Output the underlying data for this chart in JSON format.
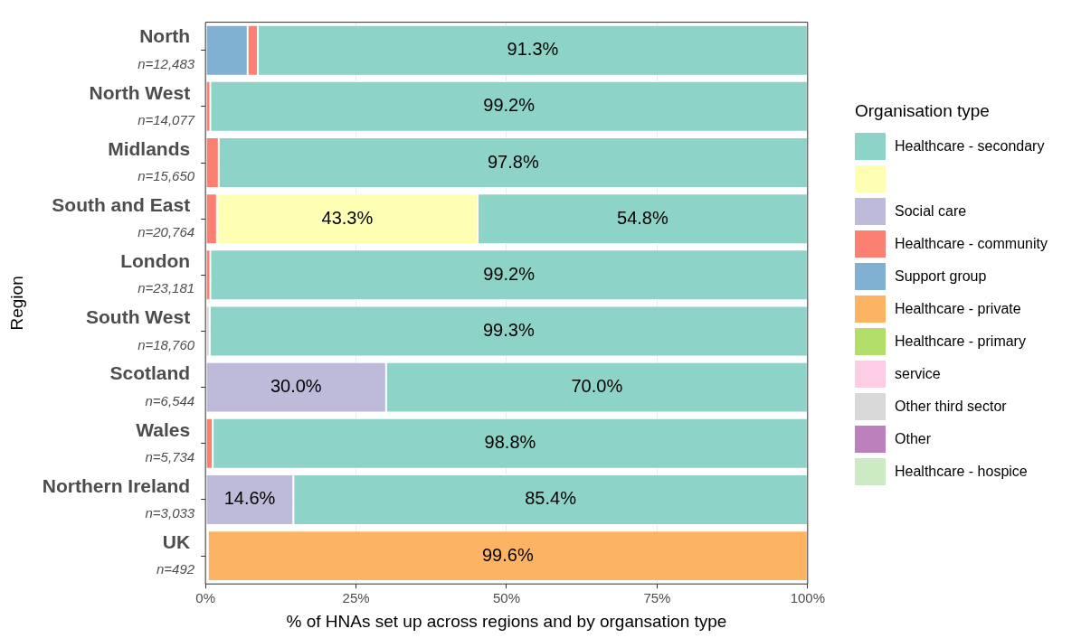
{
  "chart_data": {
    "type": "bar",
    "orientation": "horizontal",
    "stacked": true,
    "xlabel": "% of HNAs set up across regions and by organsation type",
    "ylabel": "Region",
    "legend_title": "Organisation type",
    "legend": "right",
    "grid": true,
    "categories": [
      "North",
      "North West",
      "Midlands",
      "South and East",
      "London",
      "South West",
      "Scotland",
      "Wales",
      "Northern Ireland",
      "UK"
    ],
    "xlim": [
      0,
      100
    ],
    "xticks": [
      {
        "value": 0,
        "label": "0%"
      },
      {
        "value": 25,
        "label": "25%"
      },
      {
        "value": 50,
        "label": "50%"
      },
      {
        "value": 75,
        "label": "75%"
      },
      {
        "value": 100,
        "label": "100%"
      }
    ],
    "annotations": [
      "n=12,483",
      "n=14,077",
      "n=15,650",
      "n=20,764",
      "n=23,181",
      "n=18,760",
      "n=6,544",
      "n=5,734",
      "n=3,033",
      "n=492"
    ],
    "series": [
      {
        "name": "Healthcare - hospice",
        "color": "#ccebc5",
        "values": [
          null,
          null,
          null,
          null,
          null,
          null,
          null,
          null,
          null,
          null
        ]
      },
      {
        "name": "Other",
        "color": "#bc80bd",
        "values": [
          null,
          null,
          null,
          null,
          null,
          null,
          null,
          null,
          null,
          null
        ]
      },
      {
        "name": "Other third sector",
        "color": "#d9d9d9",
        "values": [
          null,
          null,
          null,
          null,
          null,
          0.7,
          null,
          null,
          null,
          0.4
        ]
      },
      {
        "name": "service",
        "color": "#fccde5",
        "values": [
          null,
          null,
          null,
          null,
          null,
          null,
          null,
          null,
          null,
          null
        ]
      },
      {
        "name": "Healthcare - primary",
        "color": "#b3de69",
        "values": [
          null,
          null,
          null,
          null,
          null,
          null,
          null,
          null,
          null,
          null
        ]
      },
      {
        "name": "Healthcare - private",
        "color": "#fdb462",
        "values": [
          null,
          null,
          null,
          null,
          null,
          null,
          null,
          null,
          null,
          99.6
        ],
        "value_labels": [
          null,
          null,
          null,
          null,
          null,
          null,
          null,
          null,
          null,
          "99.6%"
        ]
      },
      {
        "name": "Support group",
        "color": "#80b1d3",
        "values": [
          7.0,
          null,
          null,
          null,
          null,
          null,
          null,
          null,
          null,
          null
        ]
      },
      {
        "name": "Healthcare - community",
        "color": "#fb8072",
        "values": [
          1.7,
          0.8,
          2.2,
          1.9,
          0.8,
          null,
          null,
          1.2,
          null,
          null
        ]
      },
      {
        "name": "Social care",
        "color": "#bebada",
        "values": [
          null,
          null,
          null,
          null,
          null,
          null,
          30.0,
          null,
          14.6,
          null
        ],
        "value_labels": [
          null,
          null,
          null,
          null,
          null,
          null,
          "30.0%",
          null,
          "14.6%",
          null
        ]
      },
      {
        "color": "#ffffb3",
        "values": [
          null,
          null,
          null,
          43.3,
          null,
          null,
          null,
          null,
          null,
          null
        ],
        "value_labels": [
          null,
          null,
          null,
          "43.3%",
          null,
          null,
          null,
          null,
          null,
          null
        ]
      },
      {
        "name": "Healthcare - secondary",
        "color": "#8dd3c7",
        "values": [
          91.3,
          99.2,
          97.8,
          54.8,
          99.2,
          99.3,
          70.0,
          98.8,
          85.4,
          null
        ],
        "value_labels": [
          "91.3%",
          "99.2%",
          "97.8%",
          "54.8%",
          "99.2%",
          "99.3%",
          "70.0%",
          "98.8%",
          "85.4%",
          null
        ]
      }
    ]
  }
}
